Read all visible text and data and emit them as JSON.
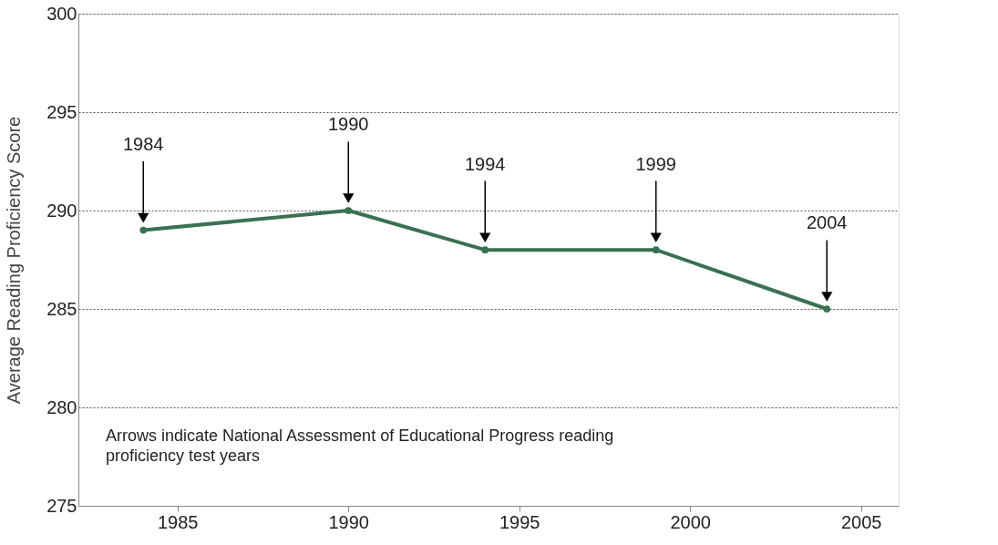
{
  "chart_data": {
    "type": "line",
    "ylabel": "Average Reading Proficiency Score",
    "x": [
      1984,
      1990,
      1994,
      1999,
      2004
    ],
    "series": [
      {
        "color": "#3a7152",
        "values": [
          289,
          290,
          288,
          288,
          285
        ]
      }
    ],
    "xlim": [
      1982.1,
      2006.1
    ],
    "xticks": [
      1985,
      1990,
      1995,
      2000,
      2005
    ],
    "ylim": [
      275,
      300
    ],
    "yticks": [
      275,
      280,
      285,
      290,
      295,
      300
    ],
    "grid": "y",
    "marker": "circle",
    "line_style": "solid",
    "annotations": [
      "1984",
      "1990",
      "1994",
      "1999",
      "2004",
      "Arrows indicate National Assessment of Educational Progress reading\nproficiency test years"
    ]
  }
}
